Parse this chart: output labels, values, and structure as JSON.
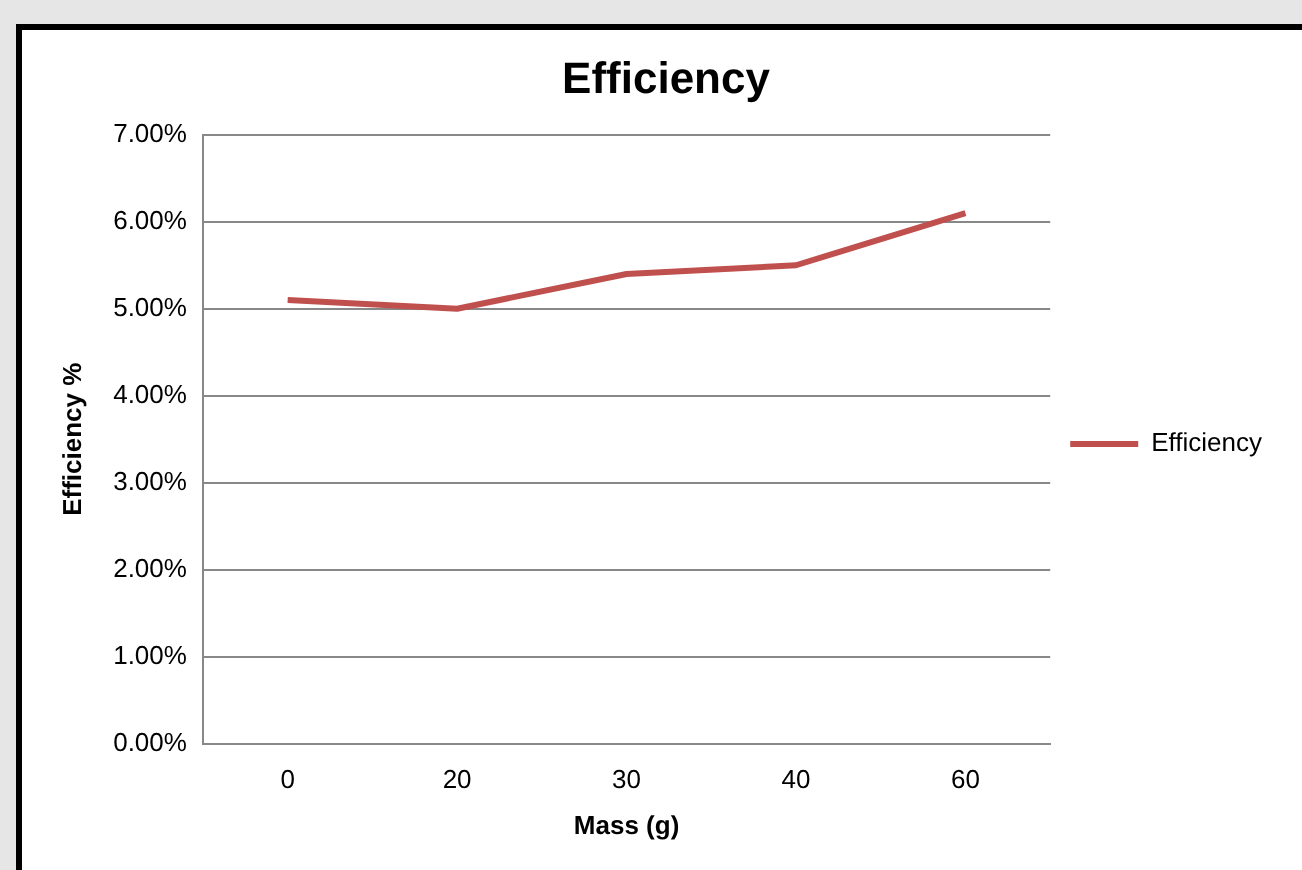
{
  "chart_data": {
    "type": "line",
    "title": "Efficiency",
    "xlabel": "Mass (g)",
    "ylabel": "Efficiency %",
    "categories": [
      "0",
      "20",
      "30",
      "40",
      "60"
    ],
    "series": [
      {
        "name": "Efficiency",
        "color": "#c0504d",
        "values": [
          5.1,
          5.0,
          5.4,
          5.5,
          6.1
        ]
      }
    ],
    "ylim": [
      0,
      7
    ],
    "yticks": [
      {
        "value": 0,
        "label": "0.00%"
      },
      {
        "value": 1,
        "label": "1.00%"
      },
      {
        "value": 2,
        "label": "2.00%"
      },
      {
        "value": 3,
        "label": "3.00%"
      },
      {
        "value": 4,
        "label": "4.00%"
      },
      {
        "value": 5,
        "label": "5.00%"
      },
      {
        "value": 6,
        "label": "6.00%"
      },
      {
        "value": 7,
        "label": "7.00%"
      }
    ],
    "grid": "y",
    "legend": "right",
    "marker": "none",
    "line_style": "solid"
  }
}
